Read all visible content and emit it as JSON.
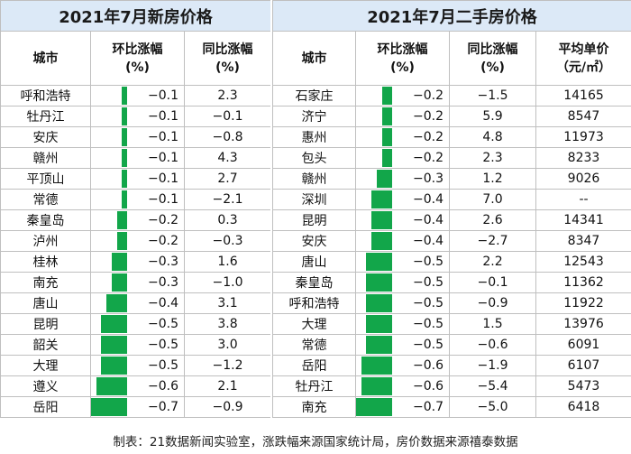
{
  "left": {
    "title": "2021年7月新房价格",
    "headers": {
      "city": "城市",
      "mom_line1": "环比涨幅",
      "mom_line2": "(%)",
      "yoy_line1": "同比涨幅",
      "yoy_line2": "(%)"
    },
    "rows": [
      {
        "city": "呼和浩特",
        "mom": "−0.1",
        "mom_value": -0.1,
        "yoy": "2.3"
      },
      {
        "city": "牡丹江",
        "mom": "−0.1",
        "mom_value": -0.1,
        "yoy": "−0.1"
      },
      {
        "city": "安庆",
        "mom": "−0.1",
        "mom_value": -0.1,
        "yoy": "−0.8"
      },
      {
        "city": "赣州",
        "mom": "−0.1",
        "mom_value": -0.1,
        "yoy": "4.3"
      },
      {
        "city": "平顶山",
        "mom": "−0.1",
        "mom_value": -0.1,
        "yoy": "2.7"
      },
      {
        "city": "常德",
        "mom": "−0.1",
        "mom_value": -0.1,
        "yoy": "−2.1"
      },
      {
        "city": "秦皇岛",
        "mom": "−0.2",
        "mom_value": -0.2,
        "yoy": "0.3"
      },
      {
        "city": "泸州",
        "mom": "−0.2",
        "mom_value": -0.2,
        "yoy": "−0.3"
      },
      {
        "city": "桂林",
        "mom": "−0.3",
        "mom_value": -0.3,
        "yoy": "1.6"
      },
      {
        "city": "南充",
        "mom": "−0.3",
        "mom_value": -0.3,
        "yoy": "−1.0"
      },
      {
        "city": "唐山",
        "mom": "−0.4",
        "mom_value": -0.4,
        "yoy": "3.1"
      },
      {
        "city": "昆明",
        "mom": "−0.5",
        "mom_value": -0.5,
        "yoy": "3.8"
      },
      {
        "city": "韶关",
        "mom": "−0.5",
        "mom_value": -0.5,
        "yoy": "3.0"
      },
      {
        "city": "大理",
        "mom": "−0.5",
        "mom_value": -0.5,
        "yoy": "−1.2"
      },
      {
        "city": "遵义",
        "mom": "−0.6",
        "mom_value": -0.6,
        "yoy": "2.1"
      },
      {
        "city": "岳阳",
        "mom": "−0.7",
        "mom_value": -0.7,
        "yoy": "−0.9"
      }
    ]
  },
  "right": {
    "title": "2021年7月二手房价格",
    "headers": {
      "city": "城市",
      "mom_line1": "环比涨幅",
      "mom_line2": "(%)",
      "yoy_line1": "同比涨幅",
      "yoy_line2": "(%)",
      "price_line1": "平均单价",
      "price_line2": "（元/㎡）"
    },
    "rows": [
      {
        "city": "石家庄",
        "mom": "−0.2",
        "mom_value": -0.2,
        "yoy": "−1.5",
        "price": "14165"
      },
      {
        "city": "济宁",
        "mom": "−0.2",
        "mom_value": -0.2,
        "yoy": "5.9",
        "price": "8547"
      },
      {
        "city": "惠州",
        "mom": "−0.2",
        "mom_value": -0.2,
        "yoy": "4.8",
        "price": "11973"
      },
      {
        "city": "包头",
        "mom": "−0.2",
        "mom_value": -0.2,
        "yoy": "2.3",
        "price": "8233"
      },
      {
        "city": "赣州",
        "mom": "−0.3",
        "mom_value": -0.3,
        "yoy": "1.2",
        "price": "9026"
      },
      {
        "city": "深圳",
        "mom": "−0.4",
        "mom_value": -0.4,
        "yoy": "7.0",
        "price": "--"
      },
      {
        "city": "昆明",
        "mom": "−0.4",
        "mom_value": -0.4,
        "yoy": "2.6",
        "price": "14341"
      },
      {
        "city": "安庆",
        "mom": "−0.4",
        "mom_value": -0.4,
        "yoy": "−2.7",
        "price": "8347"
      },
      {
        "city": "唐山",
        "mom": "−0.5",
        "mom_value": -0.5,
        "yoy": "2.2",
        "price": "12543"
      },
      {
        "city": "秦皇岛",
        "mom": "−0.5",
        "mom_value": -0.5,
        "yoy": "−0.1",
        "price": "11362"
      },
      {
        "city": "呼和浩特",
        "mom": "−0.5",
        "mom_value": -0.5,
        "yoy": "−0.9",
        "price": "11922"
      },
      {
        "city": "大理",
        "mom": "−0.5",
        "mom_value": -0.5,
        "yoy": "1.5",
        "price": "13976"
      },
      {
        "city": "常德",
        "mom": "−0.5",
        "mom_value": -0.5,
        "yoy": "−0.6",
        "price": "6091"
      },
      {
        "city": "岳阳",
        "mom": "−0.6",
        "mom_value": -0.6,
        "yoy": "−1.9",
        "price": "6107"
      },
      {
        "city": "牡丹江",
        "mom": "−0.6",
        "mom_value": -0.6,
        "yoy": "−5.4",
        "price": "5473"
      },
      {
        "city": "南充",
        "mom": "−0.7",
        "mom_value": -0.7,
        "yoy": "−5.0",
        "price": "6418"
      }
    ]
  },
  "footer": "制表：21数据新闻实验室，涨跌幅来源国家统计局，房价数据来源禧泰数据",
  "colors": {
    "bar": "#12a64a",
    "title_bg": "#dce9f7",
    "grid": "#bfbfbf"
  }
}
